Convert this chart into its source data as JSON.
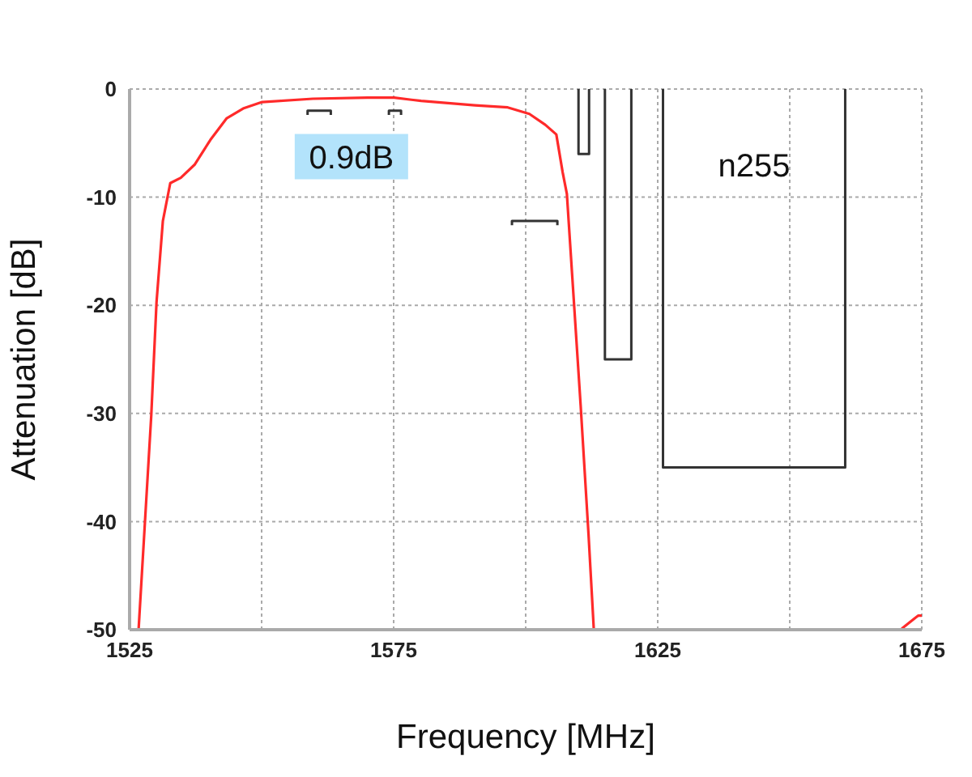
{
  "chart_data": {
    "type": "line",
    "xlabel": "Frequency [MHz]",
    "ylabel": "Attenuation [dB]",
    "xlim": [
      1525,
      1675
    ],
    "xticks": [
      1525,
      {
        "value": 1550,
        "label": null
      },
      1575,
      {
        "value": 1600,
        "label": null
      },
      1625,
      {
        "value": 1650,
        "label": null
      },
      1675
    ],
    "ylim": [
      -50,
      0
    ],
    "yticks": [
      -50,
      -40,
      -30,
      -20,
      -10,
      0
    ],
    "grid": true,
    "marker": "none",
    "line_style": "solid",
    "series": [
      {
        "color": "#ff2a2a",
        "x": [
          1526.7,
          1529.1,
          1530.1,
          1531.3,
          1532.7,
          1534.7,
          1537.3,
          1540.3,
          1543.4,
          1546.5,
          1550.1,
          1559.7,
          1570,
          1575.1,
          1580.2,
          1590.4,
          1596.6,
          1600.7,
          1603.7,
          1605.8,
          1607,
          1607.8,
          1608.8,
          1610.4,
          1611.9,
          1612.9,
          1640,
          1671.2,
          1674.3,
          1675
        ],
        "values": [
          -50,
          -30.2,
          -19.7,
          -12.2,
          -8.7,
          -8.2,
          -7,
          -4.7,
          -2.7,
          -1.8,
          -1.2,
          -0.9,
          -0.8,
          -0.8,
          -1.1,
          -1.5,
          -1.7,
          -2.3,
          -3.3,
          -4.2,
          -7.7,
          -9.7,
          -17.2,
          -29.2,
          -41.2,
          -50,
          null,
          -49.9,
          -48.7,
          -48.7
        ]
      },
      {
        "color": "#333333",
        "x": [
          1610,
          1610,
          1612,
          1612
        ],
        "values": [
          0,
          -6,
          -6,
          0
        ]
      },
      {
        "color": "#333333",
        "x": [
          1615,
          1615,
          1620,
          1620
        ],
        "values": [
          0,
          -25,
          -25,
          0
        ]
      },
      {
        "name": "n255",
        "color": "#333333",
        "x": [
          1626,
          1626,
          1660.5,
          1660.5
        ],
        "values": [
          0,
          -35,
          -35,
          0
        ]
      },
      {
        "color": "#333333",
        "x": [
          1558.7,
          1558.7,
          1563.1,
          1563.1
        ],
        "values": [
          -2.4,
          -2,
          -2,
          -2.4
        ]
      },
      {
        "color": "#333333",
        "x": [
          1574.1,
          1574.1,
          1576.4,
          1576.4
        ],
        "values": [
          -2.4,
          -2,
          -2,
          -2.4
        ]
      },
      {
        "color": "#333333",
        "x": [
          1597.4,
          1597.4,
          1606,
          1606
        ],
        "values": [
          -12.6,
          -12.2,
          -12.2,
          -12.6
        ]
      }
    ],
    "annotations": [
      "0.9dB"
    ]
  }
}
